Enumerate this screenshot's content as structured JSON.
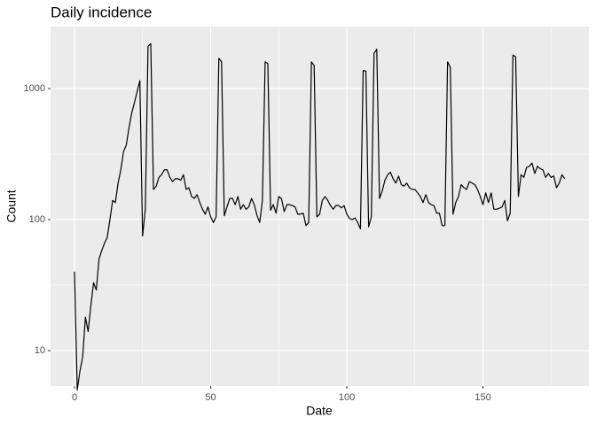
{
  "chart_data": {
    "type": "line",
    "title": "Daily incidence",
    "x_label": "Date",
    "y_label": "Count",
    "log_y": true,
    "grid": true,
    "color": "#000000",
    "x": [
      0,
      1,
      2,
      3,
      4,
      5,
      6,
      7,
      8,
      9,
      10,
      11,
      12,
      13,
      14,
      15,
      16,
      17,
      18,
      19,
      20,
      21,
      22,
      23,
      24,
      25,
      26,
      27,
      28,
      29,
      30,
      31,
      32,
      33,
      34,
      35,
      36,
      37,
      38,
      39,
      40,
      41,
      42,
      43,
      44,
      45,
      46,
      47,
      48,
      49,
      50,
      51,
      52,
      53,
      54,
      55,
      56,
      57,
      58,
      59,
      60,
      61,
      62,
      63,
      64,
      65,
      66,
      67,
      68,
      69,
      70,
      71,
      72,
      73,
      74,
      75,
      76,
      77,
      78,
      79,
      80,
      81,
      82,
      83,
      84,
      85,
      86,
      87,
      88,
      89,
      90,
      91,
      92,
      93,
      94,
      95,
      96,
      97,
      98,
      99,
      100,
      101,
      102,
      103,
      104,
      105,
      106,
      107,
      108,
      109,
      110,
      111,
      112,
      113,
      114,
      115,
      116,
      117,
      118,
      119,
      120,
      121,
      122,
      123,
      124,
      125,
      126,
      127,
      128,
      129,
      130,
      131,
      132,
      133,
      134,
      135,
      136,
      137,
      138,
      139,
      140,
      141,
      142,
      143,
      144,
      145,
      146,
      147,
      148,
      149,
      150,
      151,
      152,
      153,
      154,
      155,
      156,
      157,
      158,
      159,
      160,
      161,
      162,
      163,
      164,
      165,
      166,
      167,
      168,
      169,
      170,
      171,
      172,
      173,
      174,
      175,
      176,
      177,
      178,
      179,
      180
    ],
    "values": [
      40,
      5,
      7,
      9,
      18,
      14,
      22,
      33,
      29,
      50,
      58,
      66,
      73,
      100,
      140,
      135,
      190,
      240,
      330,
      370,
      500,
      650,
      780,
      950,
      1150,
      75,
      120,
      2100,
      2200,
      170,
      180,
      210,
      220,
      240,
      240,
      210,
      195,
      205,
      205,
      200,
      220,
      170,
      175,
      150,
      145,
      155,
      135,
      120,
      110,
      125,
      105,
      95,
      105,
      1700,
      1600,
      107,
      125,
      145,
      145,
      130,
      150,
      120,
      130,
      120,
      125,
      145,
      130,
      108,
      95,
      140,
      1600,
      1550,
      118,
      130,
      112,
      150,
      145,
      115,
      130,
      130,
      128,
      125,
      110,
      110,
      112,
      90,
      95,
      1600,
      1500,
      105,
      110,
      140,
      150,
      140,
      128,
      120,
      128,
      128,
      123,
      128,
      110,
      102,
      100,
      103,
      95,
      85,
      1370,
      1360,
      88,
      105,
      1850,
      2000,
      145,
      165,
      200,
      220,
      230,
      205,
      190,
      215,
      185,
      180,
      190,
      175,
      170,
      170,
      160,
      150,
      135,
      155,
      135,
      130,
      128,
      112,
      112,
      90,
      90,
      1600,
      1450,
      110,
      135,
      150,
      185,
      175,
      170,
      195,
      190,
      185,
      170,
      150,
      130,
      160,
      135,
      160,
      120,
      120,
      122,
      125,
      140,
      98,
      112,
      1800,
      1750,
      150,
      220,
      210,
      250,
      255,
      270,
      225,
      255,
      245,
      240,
      210,
      225,
      210,
      215,
      175,
      190,
      220,
      205
    ],
    "xlim": [
      -8.8,
      188.9
    ],
    "ylim": [
      5.37,
      2972
    ],
    "xticks": [
      0,
      50,
      100,
      150
    ],
    "yticks": [
      10,
      100,
      1000
    ]
  }
}
